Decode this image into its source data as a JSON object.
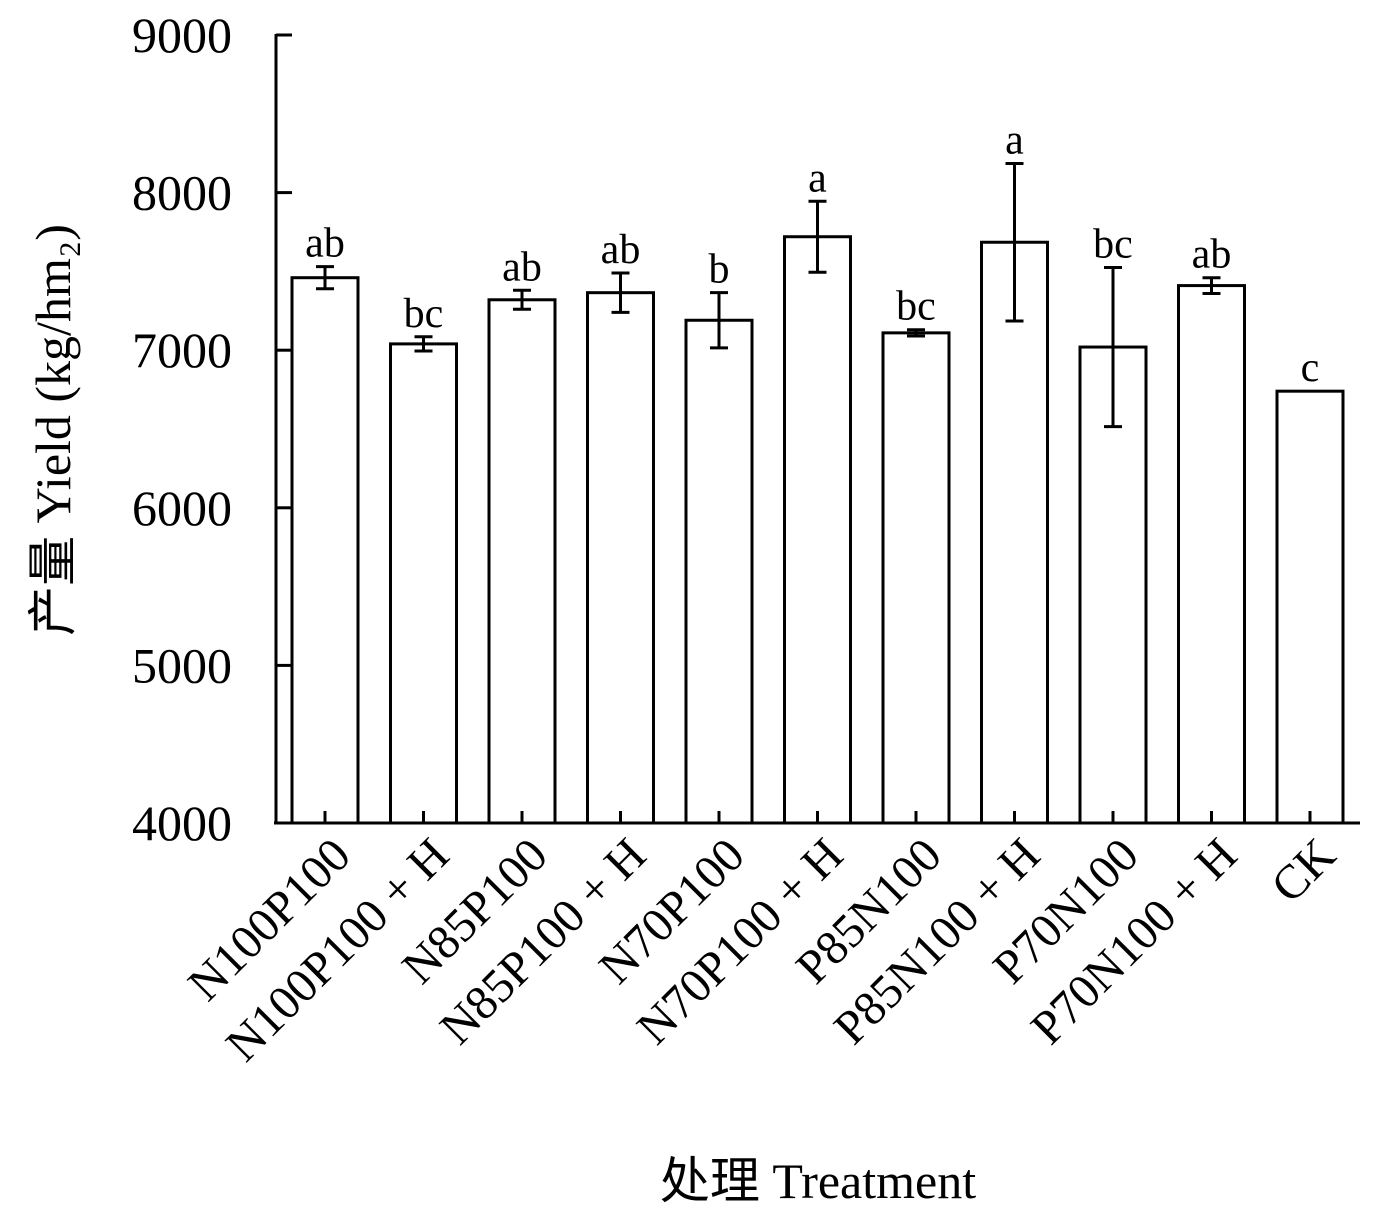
{
  "chart_data": {
    "type": "bar",
    "title": "",
    "xlabel": "处理 Treatment",
    "ylabel": "产量 Yield (kg/hm₂)",
    "ylim": [
      4000,
      9000
    ],
    "yticks": [
      4000,
      5000,
      6000,
      7000,
      8000,
      9000
    ],
    "grid": false,
    "categories": [
      "N100P100",
      "N100P100 + H",
      "N85P100",
      "N85P100 + H",
      "N70P100",
      "N70P100 + H",
      "P85N100",
      "P85N100 + H",
      "P70N100",
      "P70N100 + H",
      "CK"
    ],
    "values": [
      7460,
      7040,
      7320,
      7365,
      7190,
      7720,
      7110,
      7685,
      7020,
      7410,
      6740
    ],
    "errors": [
      70,
      45,
      60,
      125,
      175,
      225,
      20,
      500,
      505,
      50,
      0
    ],
    "significance": [
      "ab",
      "bc",
      "ab",
      "ab",
      "b",
      "a",
      "bc",
      "a",
      "bc",
      "ab",
      "c"
    ],
    "colors": {
      "bar_fill": "#ffffff",
      "bar_stroke": "#000000"
    }
  }
}
